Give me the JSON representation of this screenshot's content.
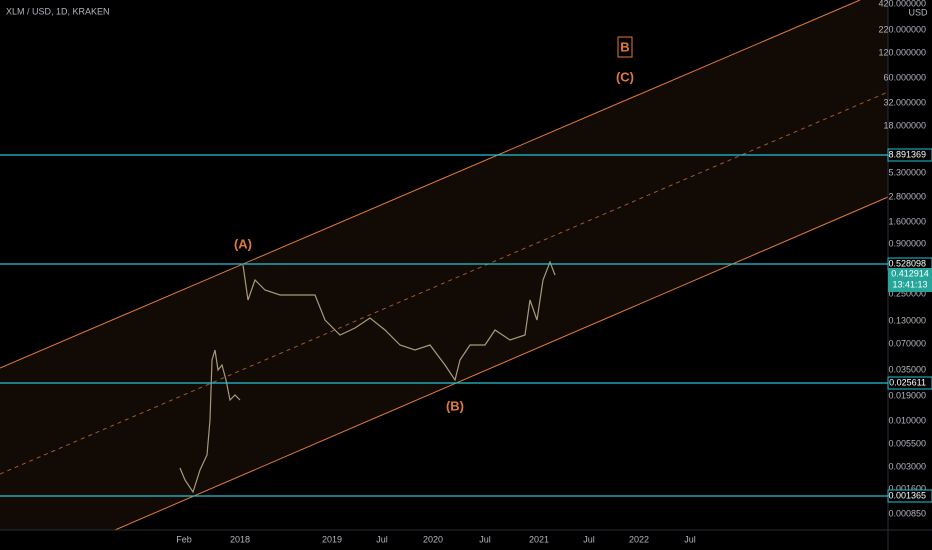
{
  "header": {
    "symbol": "XLM / USD, 1D, KRAKEN"
  },
  "price_axis": {
    "currency": "USD",
    "labels": [
      "420.000000",
      "220.000000",
      "120.000000",
      "60.000000",
      "32.000000",
      "18.000000",
      "5.300000",
      "2.800000",
      "1.600000",
      "0.900000",
      "0.250000",
      "0.130000",
      "0.070000",
      "0.035000",
      "0.019000",
      "0.010000",
      "0.005500",
      "0.003000",
      "0.001600",
      "0.000850"
    ]
  },
  "levels": [
    "8.891369",
    "0.528098",
    "0.025611",
    "0.001365"
  ],
  "last_price": {
    "price": "0.412914",
    "countdown": "13:41:13"
  },
  "time_axis": {
    "labels": [
      "Feb",
      "2018",
      "2019",
      "Jul",
      "2020",
      "Jul",
      "2021",
      "Jul",
      "2022",
      "Jul"
    ]
  },
  "annotations": [
    "(A)",
    "(B)",
    "(C)",
    "B"
  ]
}
